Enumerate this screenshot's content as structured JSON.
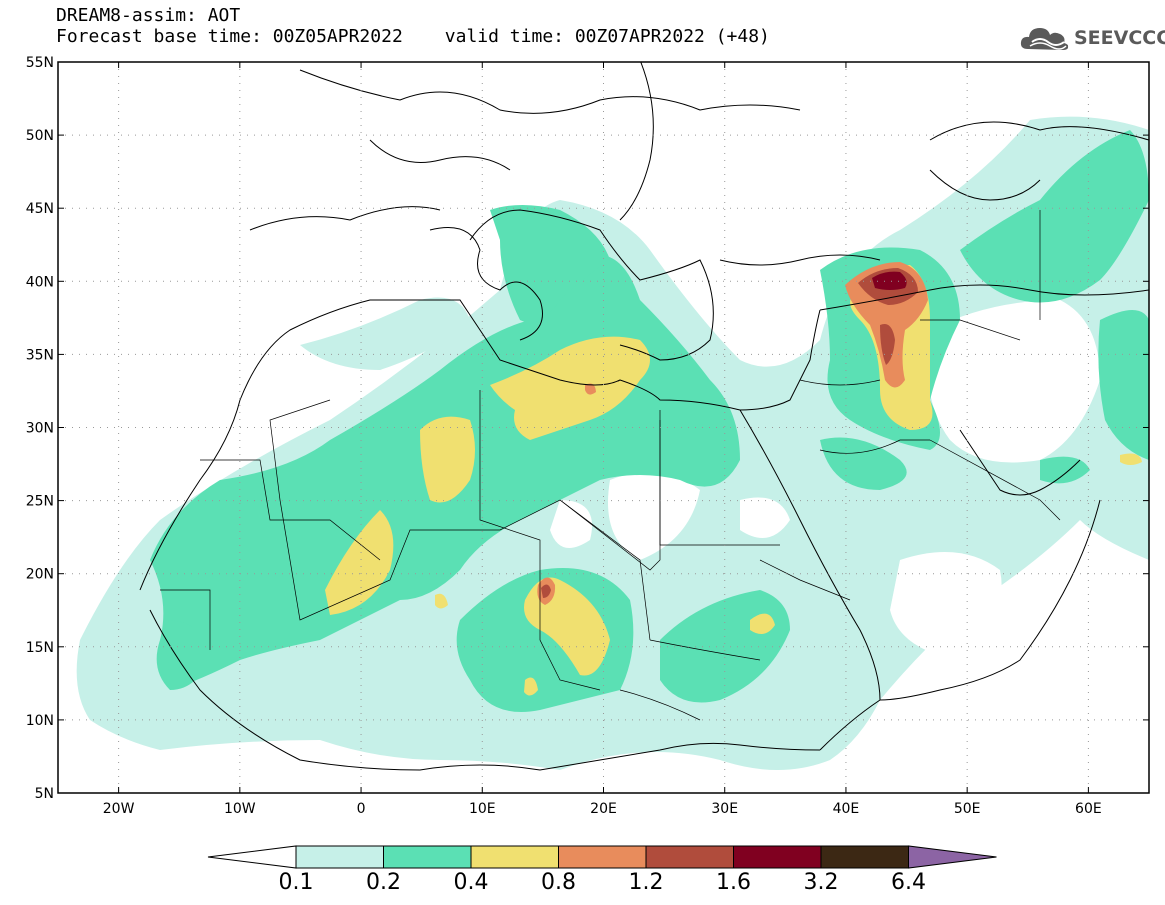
{
  "header": {
    "title": "DREAM8-assim: AOT",
    "base_time": "Forecast base time: 00Z05APR2022",
    "valid_time": "valid time: 00Z07APR2022 (+48)"
  },
  "logo": {
    "text": "SEEVCCC",
    "icon": "cloud-icon",
    "color": "#5a5a5a"
  },
  "map": {
    "extent": {
      "lon": [
        -25,
        65
      ],
      "lat": [
        5,
        55
      ]
    },
    "lat_ticks": [
      {
        "value": 55,
        "label": "55N"
      },
      {
        "value": 50,
        "label": "50N"
      },
      {
        "value": 45,
        "label": "45N"
      },
      {
        "value": 40,
        "label": "40N"
      },
      {
        "value": 35,
        "label": "35N"
      },
      {
        "value": 30,
        "label": "30N"
      },
      {
        "value": 25,
        "label": "25N"
      },
      {
        "value": 20,
        "label": "20N"
      },
      {
        "value": 15,
        "label": "15N"
      },
      {
        "value": 10,
        "label": "10N"
      },
      {
        "value": 5,
        "label": "5N"
      }
    ],
    "lon_ticks": [
      {
        "value": -20,
        "label": "20W"
      },
      {
        "value": -10,
        "label": "10W"
      },
      {
        "value": 0,
        "label": "0"
      },
      {
        "value": 10,
        "label": "10E"
      },
      {
        "value": 20,
        "label": "20E"
      },
      {
        "value": 30,
        "label": "30E"
      },
      {
        "value": 40,
        "label": "40E"
      },
      {
        "value": 50,
        "label": "50E"
      },
      {
        "value": 60,
        "label": "60E"
      }
    ],
    "grid": true
  },
  "colorbar": {
    "colors": [
      "#ffffff",
      "#c6f0e8",
      "#5be0b4",
      "#f0e070",
      "#e88c5c",
      "#b04c3c",
      "#800020",
      "#3c2814",
      "#8c64a4"
    ],
    "labels": [
      "0.1",
      "0.2",
      "0.4",
      "0.8",
      "1.2",
      "1.6",
      "3.2",
      "6.4"
    ]
  }
}
